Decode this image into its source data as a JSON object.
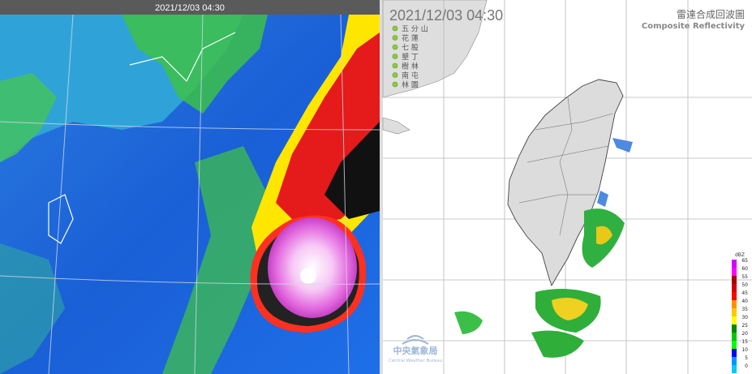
{
  "satellite": {
    "timestamp": "2021/12/03 04:30"
  },
  "radar": {
    "timestamp": "2021/12/03  04:30",
    "title": "雷達合成回波圖",
    "subtitle": "Composite Reflectivity",
    "stations": [
      "五 分 山",
      "花 蓮",
      "七 股",
      "墾 丁",
      "樹 林",
      "南 屯",
      "林 園"
    ],
    "colorbar": {
      "unit": "dBZ",
      "ticks": [
        65,
        60,
        55,
        50,
        45,
        40,
        35,
        30,
        25,
        20,
        15,
        10,
        5,
        0
      ],
      "colors": [
        "#d400ff",
        "#ff00ff",
        "#a80000",
        "#d00000",
        "#ff0000",
        "#ff9000",
        "#ffc800",
        "#ffff00",
        "#008800",
        "#00c800",
        "#00ff00",
        "#0000ff",
        "#0096ff",
        "#00c8ff"
      ]
    },
    "logo": {
      "name": "中央氣象局",
      "name_en": "Central Weather Bureau"
    }
  }
}
